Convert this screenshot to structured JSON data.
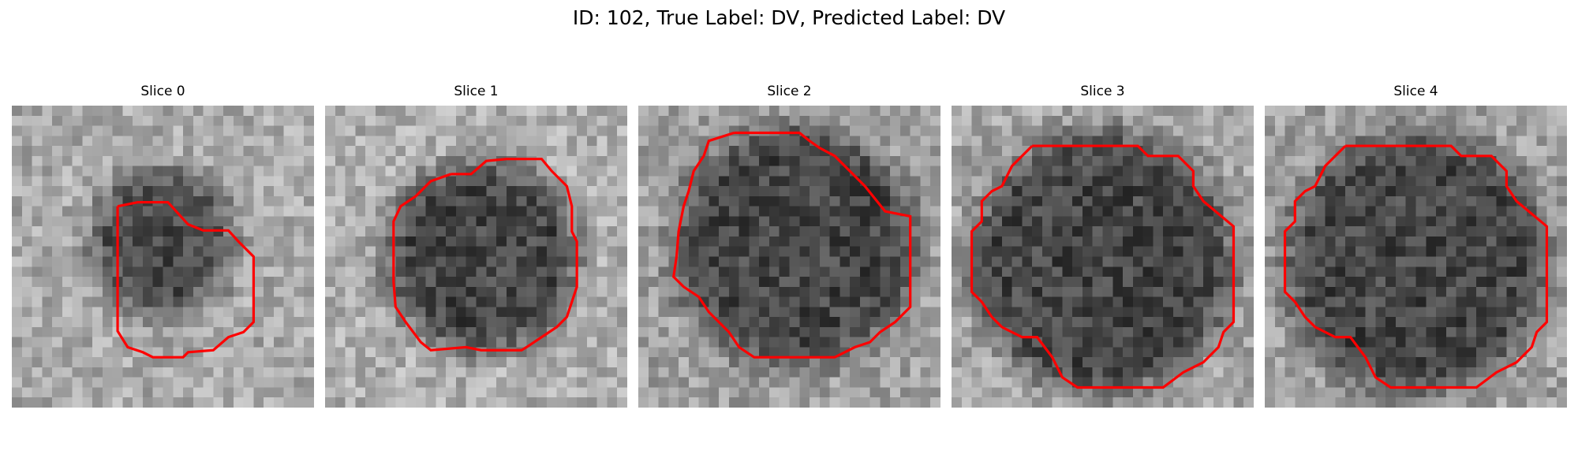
{
  "figure": {
    "title": "ID: 102, True Label: DV, Predicted Label: DV",
    "contour_color": "#ff0000"
  },
  "panels": [
    {
      "title": "Slice 0"
    },
    {
      "title": "Slice 1"
    },
    {
      "title": "Slice 2"
    },
    {
      "title": "Slice 3"
    },
    {
      "title": "Slice 4"
    }
  ]
}
